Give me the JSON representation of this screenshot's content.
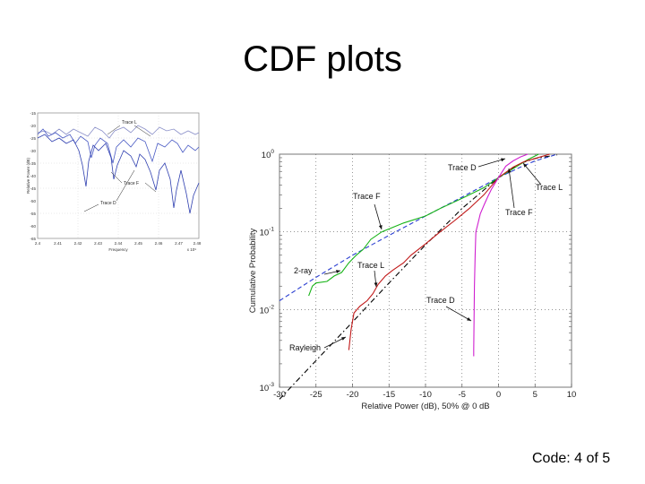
{
  "slide": {
    "title": "CDF plots",
    "footer": "Code: 4 of 5"
  },
  "colors": {
    "background": "#ffffff",
    "inset_trace": "#4a5bc4",
    "rayleigh": "#000000",
    "two_ray": "#2b3fd1",
    "trace_f": "#18b418",
    "trace_l": "#c01818",
    "trace_d": "#d020d0"
  },
  "inset_chart": {
    "y_ticks": [
      "-15",
      "-20",
      "-25",
      "-30",
      "-35",
      "-40",
      "-45",
      "-50",
      "-55",
      "-60",
      "-65"
    ],
    "x_ticks": [
      "2.4",
      "2.41",
      "2.42",
      "2.43",
      "2.44",
      "2.45",
      "2.46",
      "2.47",
      "2.48"
    ],
    "ylabel": "Relative Power (dB)",
    "xlabel": "Frequency",
    "x_multiplier": "x 10⁹",
    "annotations": [
      "Trace L",
      "Trace F",
      "Trace D"
    ]
  },
  "chart_data": {
    "type": "line",
    "xlabel": "Relative Power (dB), 50% @ 0 dB",
    "ylabel": "Cumulative Probability",
    "xlim": [
      -30,
      10
    ],
    "ylim_log10": [
      -3,
      0
    ],
    "y_scale": "log",
    "x_ticks": [
      "-30",
      "-25",
      "-20",
      "-15",
      "-10",
      "-5",
      "0",
      "5",
      "10"
    ],
    "y_ticks": [
      {
        "base": "10",
        "exp": "0",
        "value": 1
      },
      {
        "base": "10",
        "exp": "-1",
        "value": 0.1
      },
      {
        "base": "10",
        "exp": "-2",
        "value": 0.01
      },
      {
        "base": "10",
        "exp": "-3",
        "value": 0.001
      }
    ],
    "grid": true,
    "series": [
      {
        "name": "Rayleigh",
        "style": "dashdot",
        "color": "#000000",
        "x": [
          -30,
          -25,
          -20,
          -15,
          -10,
          -5,
          0,
          3,
          5,
          8
        ],
        "y": [
          0.0007,
          0.0022,
          0.0069,
          0.022,
          0.068,
          0.2,
          0.5,
          0.76,
          0.88,
          0.98
        ]
      },
      {
        "name": "2-ray",
        "style": "dashed",
        "color": "#2b3fd1",
        "x": [
          -30,
          -25,
          -20,
          -15,
          -10,
          -5,
          0,
          3,
          5,
          7,
          8
        ],
        "y": [
          0.013,
          0.026,
          0.05,
          0.09,
          0.16,
          0.28,
          0.5,
          0.68,
          0.82,
          0.93,
          1.0
        ]
      },
      {
        "name": "Trace F",
        "style": "solid",
        "color": "#18b418",
        "x": [
          -26,
          -25.5,
          -25,
          -23.5,
          -22.5,
          -21.5,
          -20.5,
          -19.5,
          -18.5,
          -17.5,
          -16,
          -13,
          -10,
          -8,
          -5,
          -2,
          0,
          2,
          4,
          5.5
        ],
        "y": [
          0.015,
          0.02,
          0.022,
          0.023,
          0.027,
          0.03,
          0.04,
          0.05,
          0.06,
          0.08,
          0.1,
          0.13,
          0.16,
          0.2,
          0.27,
          0.37,
          0.5,
          0.65,
          0.85,
          1.0
        ]
      },
      {
        "name": "Trace L",
        "style": "solid",
        "color": "#c01818",
        "x": [
          -20.5,
          -20.2,
          -19.8,
          -19,
          -18,
          -17.2,
          -16.5,
          -15.5,
          -14.5,
          -13,
          -12,
          -10,
          -8,
          -6,
          -4,
          -2,
          0,
          2,
          3.5,
          5,
          7
        ],
        "y": [
          0.003,
          0.0055,
          0.009,
          0.011,
          0.013,
          0.016,
          0.021,
          0.027,
          0.032,
          0.04,
          0.05,
          0.07,
          0.1,
          0.14,
          0.2,
          0.3,
          0.5,
          0.68,
          0.8,
          0.88,
          1.0
        ]
      },
      {
        "name": "Trace D",
        "style": "solid",
        "color": "#d020d0",
        "x": [
          -3.4,
          -3.4,
          -3.3,
          -3.2,
          -3.1,
          -2.8,
          -2.5,
          -2,
          -1.5,
          -1,
          0,
          1,
          2,
          3,
          4
        ],
        "y": [
          0.0025,
          0.003,
          0.02,
          0.05,
          0.1,
          0.13,
          0.17,
          0.22,
          0.28,
          0.35,
          0.5,
          0.7,
          0.82,
          0.92,
          1.0
        ]
      }
    ],
    "annotations": [
      {
        "text": "Trace D"
      },
      {
        "text": "Trace L"
      },
      {
        "text": "Trace F"
      },
      {
        "text": "Trace F"
      },
      {
        "text": "2-ray"
      },
      {
        "text": "Trace L"
      },
      {
        "text": "Trace D"
      },
      {
        "text": "Rayleigh"
      }
    ]
  }
}
